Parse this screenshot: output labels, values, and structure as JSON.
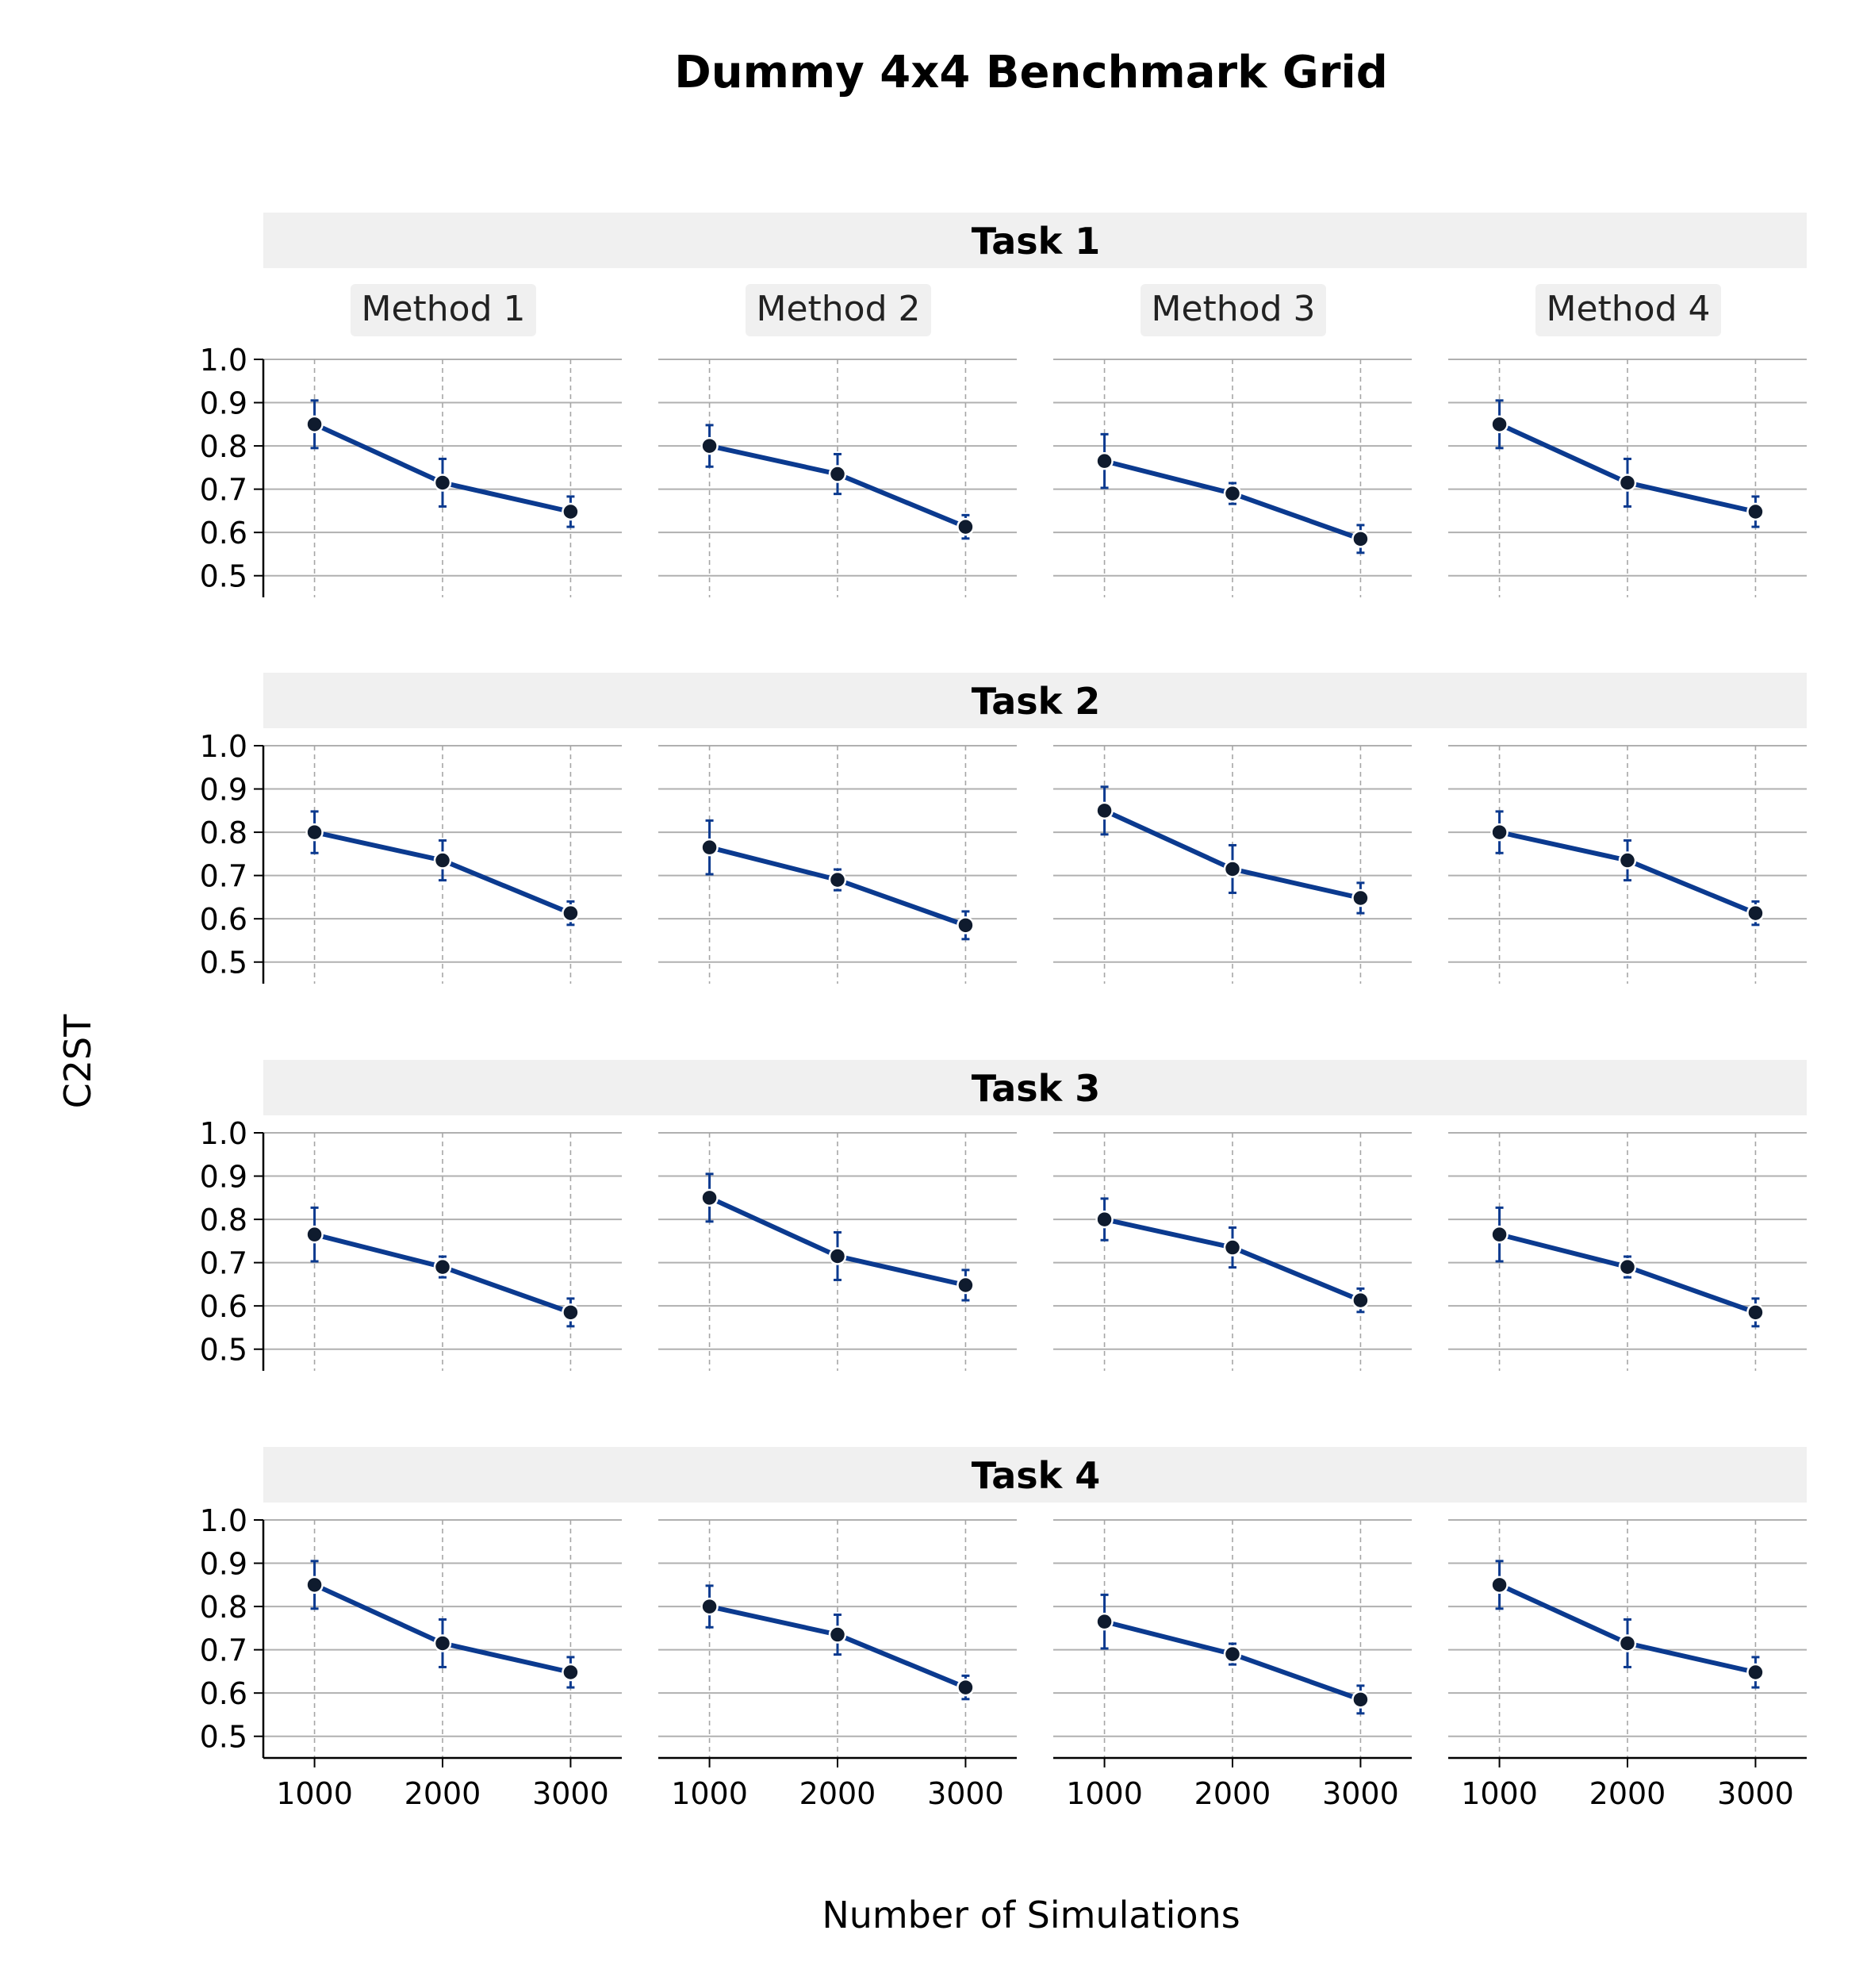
{
  "title": "Dummy 4x4 Benchmark Grid",
  "xlabel": "Number of Simulations",
  "ylabel": "C2ST",
  "colors": {
    "line": "#0b3a8f",
    "marker_fill": "#0f1b2e",
    "marker_edge": "#ffffff",
    "strip_bg": "#f0f0f0",
    "grid_major": "#b0b0b0",
    "grid_x": "#a6a6a6"
  },
  "chart_data": {
    "type": "line",
    "layout": "4x4 facet grid",
    "x": [
      1000,
      2000,
      3000
    ],
    "x_tick_labels": [
      "1000",
      "2000",
      "3000"
    ],
    "y_ticks": [
      0.5,
      0.6,
      0.7,
      0.8,
      0.9,
      1.0
    ],
    "y_tick_labels": [
      "0.5",
      "0.6",
      "0.7",
      "0.8",
      "0.9",
      "1.0"
    ],
    "ylim": [
      0.45,
      1.0
    ],
    "grid": true,
    "columns": [
      "Method 1",
      "Method 2",
      "Method 3",
      "Method 4"
    ],
    "rows": [
      {
        "task": "Task 1",
        "panels": [
          {
            "y": [
              0.85,
              0.715,
              0.648
            ],
            "err": [
              0.055,
              0.055,
              0.035
            ]
          },
          {
            "y": [
              0.8,
              0.735,
              0.613
            ],
            "err": [
              0.048,
              0.046,
              0.027
            ]
          },
          {
            "y": [
              0.765,
              0.69,
              0.585
            ],
            "err": [
              0.062,
              0.024,
              0.032
            ]
          },
          {
            "y": [
              0.85,
              0.715,
              0.648
            ],
            "err": [
              0.055,
              0.055,
              0.035
            ]
          }
        ]
      },
      {
        "task": "Task 2",
        "panels": [
          {
            "y": [
              0.8,
              0.735,
              0.613
            ],
            "err": [
              0.048,
              0.046,
              0.027
            ]
          },
          {
            "y": [
              0.765,
              0.69,
              0.585
            ],
            "err": [
              0.062,
              0.024,
              0.032
            ]
          },
          {
            "y": [
              0.85,
              0.715,
              0.648
            ],
            "err": [
              0.055,
              0.055,
              0.035
            ]
          },
          {
            "y": [
              0.8,
              0.735,
              0.613
            ],
            "err": [
              0.048,
              0.046,
              0.027
            ]
          }
        ]
      },
      {
        "task": "Task 3",
        "panels": [
          {
            "y": [
              0.765,
              0.69,
              0.585
            ],
            "err": [
              0.062,
              0.024,
              0.032
            ]
          },
          {
            "y": [
              0.85,
              0.715,
              0.648
            ],
            "err": [
              0.055,
              0.055,
              0.035
            ]
          },
          {
            "y": [
              0.8,
              0.735,
              0.613
            ],
            "err": [
              0.048,
              0.046,
              0.027
            ]
          },
          {
            "y": [
              0.765,
              0.69,
              0.585
            ],
            "err": [
              0.062,
              0.024,
              0.032
            ]
          }
        ]
      },
      {
        "task": "Task 4",
        "panels": [
          {
            "y": [
              0.85,
              0.715,
              0.648
            ],
            "err": [
              0.055,
              0.055,
              0.035
            ]
          },
          {
            "y": [
              0.8,
              0.735,
              0.613
            ],
            "err": [
              0.048,
              0.046,
              0.027
            ]
          },
          {
            "y": [
              0.765,
              0.69,
              0.585
            ],
            "err": [
              0.062,
              0.024,
              0.032
            ]
          },
          {
            "y": [
              0.85,
              0.715,
              0.648
            ],
            "err": [
              0.055,
              0.055,
              0.035
            ]
          }
        ]
      }
    ]
  }
}
